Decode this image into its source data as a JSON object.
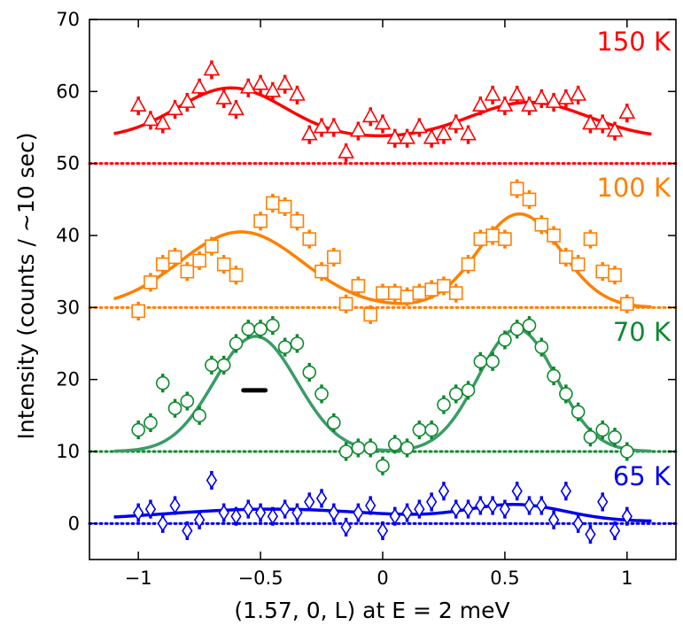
{
  "chart_data": {
    "type": "scatter",
    "xlabel": "(1.57, 0, L) at E = 2 meV",
    "ylabel": "Intensity (counts / ~10 sec)",
    "xlim": [
      -1.2,
      1.2
    ],
    "ylim": [
      -5,
      70
    ],
    "xticks": [
      -1,
      -0.5,
      0,
      0.5,
      1
    ],
    "xtick_labels": [
      "−1",
      "−0.5",
      "0",
      "0.5",
      "1"
    ],
    "yticks": [
      0,
      10,
      20,
      30,
      40,
      50,
      60,
      70
    ],
    "ytick_labels": [
      "0",
      "10",
      "20",
      "30",
      "40",
      "50",
      "60",
      "70"
    ],
    "resolution_bar": {
      "x": [
        -0.57,
        -0.48
      ],
      "y": 18.5
    },
    "series": [
      {
        "name": "150 K",
        "label": "150 K",
        "color": "#ff0000",
        "marker": "triangle",
        "baseline": 50,
        "error": 1.3,
        "fit": {
          "baseline": 53.5,
          "peaks": [
            {
              "a": 7.0,
              "mu": -0.62,
              "sigma": 0.22
            },
            {
              "a": 5.0,
              "mu": 0.6,
              "sigma": 0.24
            }
          ]
        },
        "points": [
          [
            -1.0,
            58.0
          ],
          [
            -0.95,
            56.0
          ],
          [
            -0.9,
            55.5
          ],
          [
            -0.85,
            57.5
          ],
          [
            -0.8,
            58.5
          ],
          [
            -0.75,
            60.5
          ],
          [
            -0.7,
            63.0
          ],
          [
            -0.65,
            59.0
          ],
          [
            -0.6,
            57.5
          ],
          [
            -0.55,
            60.5
          ],
          [
            -0.5,
            61.0
          ],
          [
            -0.45,
            60.0
          ],
          [
            -0.4,
            61.0
          ],
          [
            -0.35,
            59.5
          ],
          [
            -0.3,
            54.0
          ],
          [
            -0.25,
            55.0
          ],
          [
            -0.2,
            55.0
          ],
          [
            -0.15,
            51.5
          ],
          [
            -0.1,
            54.5
          ],
          [
            -0.05,
            56.5
          ],
          [
            0.0,
            55.5
          ],
          [
            0.05,
            53.5
          ],
          [
            0.1,
            53.5
          ],
          [
            0.15,
            55.0
          ],
          [
            0.2,
            53.5
          ],
          [
            0.25,
            54.0
          ],
          [
            0.3,
            55.5
          ],
          [
            0.35,
            54.0
          ],
          [
            0.4,
            58.0
          ],
          [
            0.45,
            59.5
          ],
          [
            0.5,
            58.0
          ],
          [
            0.55,
            59.5
          ],
          [
            0.6,
            58.0
          ],
          [
            0.65,
            59.0
          ],
          [
            0.7,
            58.5
          ],
          [
            0.75,
            59.0
          ],
          [
            0.8,
            59.5
          ],
          [
            0.85,
            55.5
          ],
          [
            0.9,
            55.5
          ],
          [
            0.95,
            54.5
          ],
          [
            1.0,
            57.0
          ]
        ]
      },
      {
        "name": "100 K",
        "label": "100 K",
        "color": "#ff8000",
        "marker": "square",
        "baseline": 30,
        "error": 1.3,
        "fit": {
          "baseline": 30.0,
          "peaks": [
            {
              "a": 10.5,
              "mu": -0.58,
              "sigma": 0.25
            },
            {
              "a": 13.0,
              "mu": 0.56,
              "sigma": 0.17
            }
          ]
        },
        "points": [
          [
            -1.0,
            29.5
          ],
          [
            -0.95,
            33.5
          ],
          [
            -0.9,
            36.0
          ],
          [
            -0.85,
            37.0
          ],
          [
            -0.8,
            35.0
          ],
          [
            -0.75,
            36.5
          ],
          [
            -0.7,
            38.5
          ],
          [
            -0.65,
            36.0
          ],
          [
            -0.6,
            34.5
          ],
          [
            -0.5,
            42.0
          ],
          [
            -0.45,
            44.5
          ],
          [
            -0.4,
            44.0
          ],
          [
            -0.35,
            42.0
          ],
          [
            -0.3,
            39.5
          ],
          [
            -0.25,
            35.0
          ],
          [
            -0.2,
            37.0
          ],
          [
            -0.15,
            30.5
          ],
          [
            -0.1,
            33.0
          ],
          [
            -0.05,
            29.0
          ],
          [
            0.0,
            32.0
          ],
          [
            0.05,
            32.0
          ],
          [
            0.1,
            31.5
          ],
          [
            0.15,
            32.0
          ],
          [
            0.2,
            32.5
          ],
          [
            0.25,
            33.0
          ],
          [
            0.3,
            32.0
          ],
          [
            0.35,
            36.0
          ],
          [
            0.4,
            39.5
          ],
          [
            0.45,
            40.0
          ],
          [
            0.5,
            39.5
          ],
          [
            0.55,
            46.5
          ],
          [
            0.6,
            45.0
          ],
          [
            0.65,
            41.5
          ],
          [
            0.7,
            40.0
          ],
          [
            0.75,
            37.0
          ],
          [
            0.8,
            36.0
          ],
          [
            0.85,
            39.5
          ],
          [
            0.9,
            35.0
          ],
          [
            0.95,
            34.5
          ],
          [
            1.0,
            30.5
          ]
        ]
      },
      {
        "name": "70 K",
        "label": "70 K",
        "color": "#0d8a2e",
        "marker": "circle",
        "fit_color": "#3a9c66",
        "baseline": 10,
        "error": 1.3,
        "fit": {
          "baseline": 10.0,
          "peaks": [
            {
              "a": 16.0,
              "mu": -0.52,
              "sigma": 0.17
            },
            {
              "a": 17.0,
              "mu": 0.55,
              "sigma": 0.16
            }
          ]
        },
        "points": [
          [
            -1.0,
            13.0
          ],
          [
            -0.95,
            14.0
          ],
          [
            -0.9,
            19.5
          ],
          [
            -0.85,
            16.0
          ],
          [
            -0.8,
            17.0
          ],
          [
            -0.75,
            15.0
          ],
          [
            -0.7,
            22.0
          ],
          [
            -0.65,
            22.0
          ],
          [
            -0.6,
            25.0
          ],
          [
            -0.55,
            27.0
          ],
          [
            -0.5,
            27.0
          ],
          [
            -0.45,
            27.5
          ],
          [
            -0.4,
            24.5
          ],
          [
            -0.35,
            25.0
          ],
          [
            -0.3,
            21.0
          ],
          [
            -0.25,
            18.0
          ],
          [
            -0.2,
            14.0
          ],
          [
            -0.15,
            10.0
          ],
          [
            -0.1,
            10.5
          ],
          [
            -0.05,
            10.5
          ],
          [
            0.0,
            8.0
          ],
          [
            0.05,
            11.0
          ],
          [
            0.1,
            10.5
          ],
          [
            0.15,
            13.0
          ],
          [
            0.2,
            13.0
          ],
          [
            0.25,
            16.5
          ],
          [
            0.3,
            18.0
          ],
          [
            0.35,
            18.5
          ],
          [
            0.4,
            22.5
          ],
          [
            0.45,
            22.5
          ],
          [
            0.5,
            25.5
          ],
          [
            0.55,
            27.0
          ],
          [
            0.6,
            27.5
          ],
          [
            0.65,
            24.5
          ],
          [
            0.7,
            20.5
          ],
          [
            0.75,
            18.0
          ],
          [
            0.8,
            15.5
          ],
          [
            0.85,
            12.0
          ],
          [
            0.9,
            13.0
          ],
          [
            0.95,
            12.0
          ],
          [
            1.0,
            10.0
          ]
        ]
      },
      {
        "name": "65 K",
        "label": "65 K",
        "color": "#0000ee",
        "marker": "diamond",
        "baseline": 0,
        "error": 1.3,
        "fit": {
          "baseline": 0.3,
          "peaks": [
            {
              "a": 1.7,
              "mu": -0.45,
              "sigma": 0.45
            },
            {
              "a": 2.2,
              "mu": 0.55,
              "sigma": 0.2
            }
          ]
        },
        "points": [
          [
            -1.0,
            1.5
          ],
          [
            -0.95,
            2.0
          ],
          [
            -0.9,
            0.0
          ],
          [
            -0.85,
            2.5
          ],
          [
            -0.8,
            -1.0
          ],
          [
            -0.75,
            0.5
          ],
          [
            -0.7,
            6.0
          ],
          [
            -0.65,
            1.5
          ],
          [
            -0.6,
            1.0
          ],
          [
            -0.55,
            2.0
          ],
          [
            -0.5,
            1.5
          ],
          [
            -0.45,
            1.0
          ],
          [
            -0.4,
            2.0
          ],
          [
            -0.35,
            1.5
          ],
          [
            -0.3,
            3.0
          ],
          [
            -0.25,
            3.5
          ],
          [
            -0.2,
            1.5
          ],
          [
            -0.15,
            -0.5
          ],
          [
            -0.1,
            1.5
          ],
          [
            -0.05,
            2.5
          ],
          [
            0.0,
            -1.0
          ],
          [
            0.05,
            1.0
          ],
          [
            0.1,
            1.5
          ],
          [
            0.15,
            2.0
          ],
          [
            0.2,
            3.0
          ],
          [
            0.25,
            4.5
          ],
          [
            0.3,
            2.0
          ],
          [
            0.35,
            2.0
          ],
          [
            0.4,
            2.5
          ],
          [
            0.45,
            2.5
          ],
          [
            0.5,
            2.0
          ],
          [
            0.55,
            4.5
          ],
          [
            0.6,
            2.5
          ],
          [
            0.65,
            2.5
          ],
          [
            0.7,
            0.5
          ],
          [
            0.75,
            4.5
          ],
          [
            0.8,
            0.0
          ],
          [
            0.85,
            -1.5
          ],
          [
            0.9,
            3.0
          ],
          [
            0.95,
            -1.0
          ],
          [
            1.0,
            1.0
          ]
        ]
      }
    ]
  }
}
